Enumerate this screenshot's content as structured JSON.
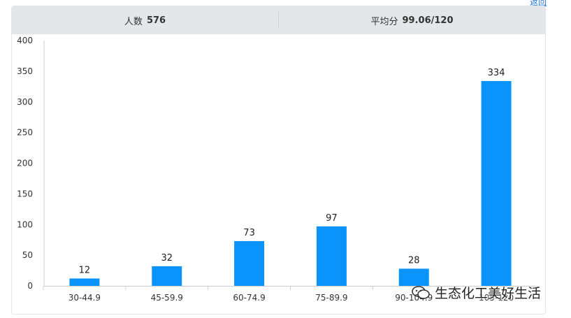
{
  "header": {
    "corner_link": "返回"
  },
  "stats": {
    "count_label": "人数",
    "count_value": "576",
    "avg_label": "平均分",
    "avg_value": "99.06/120"
  },
  "watermark": {
    "text": "生态化工美好生活",
    "icon": "wechat-icon"
  },
  "colors": {
    "bar": "#0a94fb",
    "axis": "#c9ccd1",
    "header_bg": "#e4e7e9"
  },
  "chart_data": {
    "type": "bar",
    "categories": [
      "30-44.9",
      "45-59.9",
      "60-74.9",
      "75-89.9",
      "90-104.9",
      "105-120"
    ],
    "values": [
      12,
      32,
      73,
      97,
      28,
      334
    ],
    "ylim": [
      0,
      400
    ],
    "yticks": [
      0,
      50,
      100,
      150,
      200,
      250,
      300,
      350,
      400
    ],
    "grid": false,
    "title": "",
    "xlabel": "",
    "ylabel": ""
  }
}
